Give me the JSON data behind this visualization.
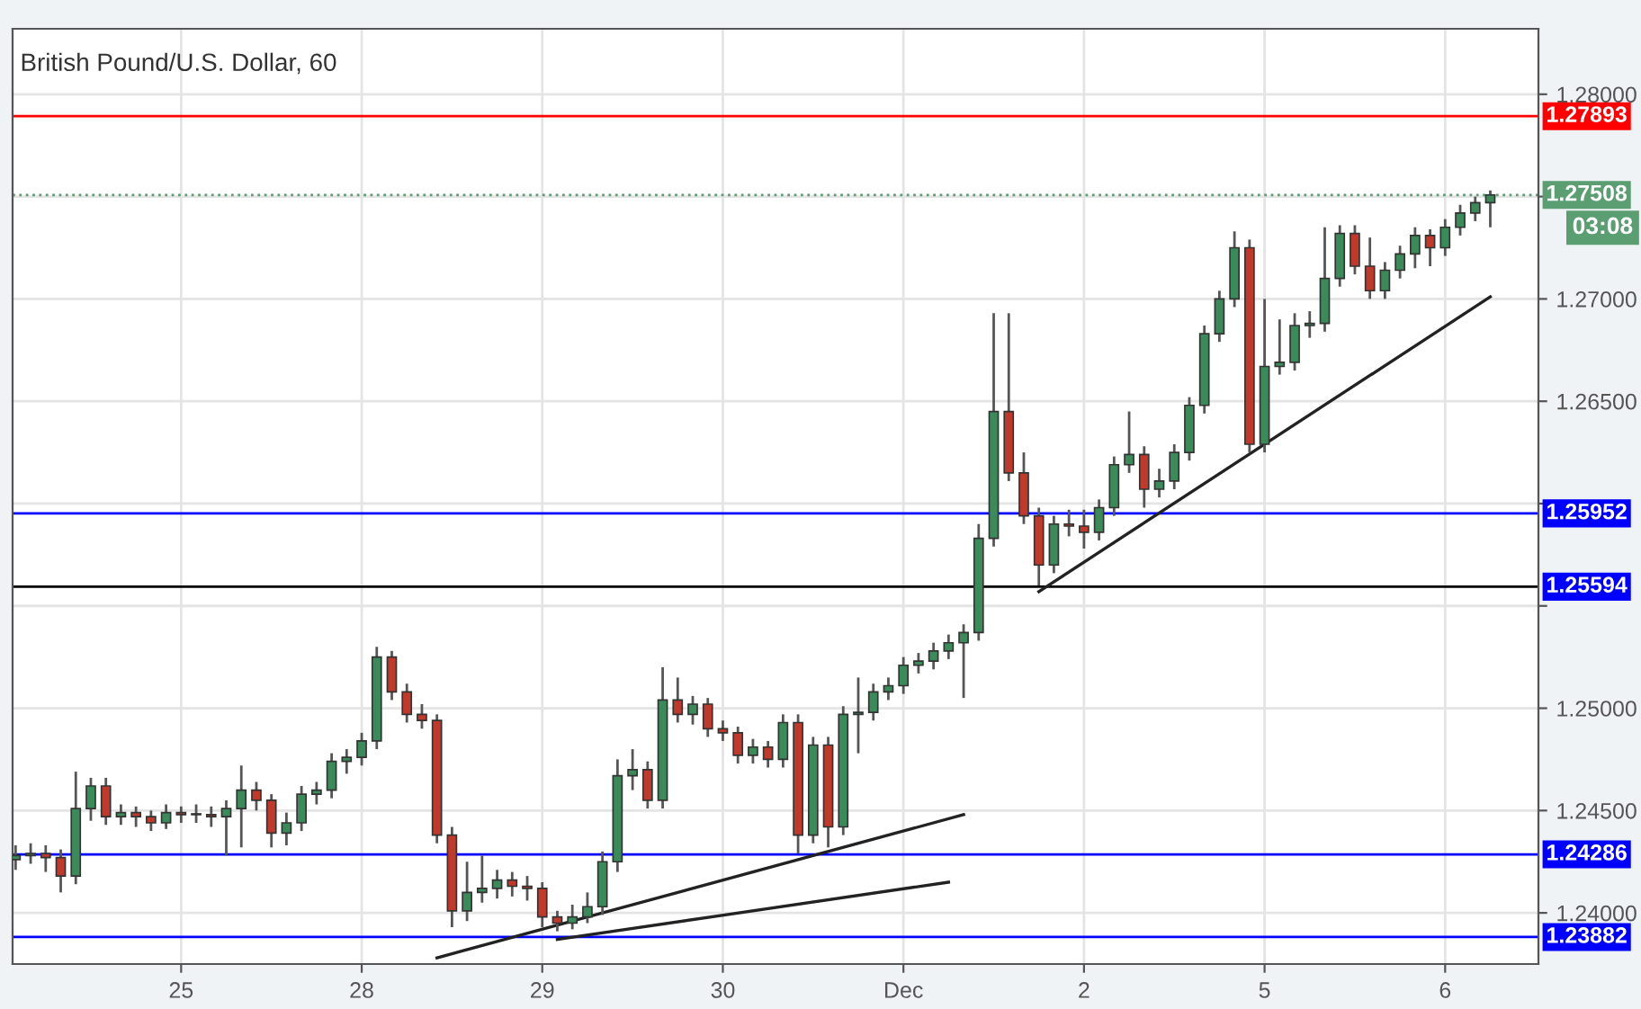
{
  "chart_data": {
    "type": "candlestick",
    "title": "British Pound/U.S. Dollar, 60",
    "categories": [
      null,
      null,
      null,
      null,
      null,
      null,
      null,
      null,
      null,
      null,
      null,
      "25",
      null,
      null,
      null,
      null,
      null,
      null,
      null,
      null,
      null,
      null,
      null,
      "28",
      null,
      null,
      null,
      null,
      null,
      null,
      null,
      null,
      null,
      null,
      null,
      "29",
      null,
      null,
      null,
      null,
      null,
      null,
      null,
      null,
      null,
      null,
      null,
      "30",
      null,
      null,
      null,
      null,
      null,
      null,
      null,
      null,
      null,
      null,
      null,
      "Dec",
      null,
      null,
      null,
      null,
      null,
      null,
      null,
      null,
      null,
      null,
      null,
      "2",
      null,
      null,
      null,
      null,
      null,
      null,
      null,
      null,
      null,
      null,
      null,
      "5",
      null,
      null,
      null,
      null,
      null,
      null,
      null,
      null,
      null,
      null,
      null,
      "6",
      null,
      null,
      null
    ],
    "ohlc": [
      [
        1.2426,
        1.2433,
        1.2421,
        1.2428
      ],
      [
        1.2428,
        1.2434,
        1.2424,
        1.2429
      ],
      [
        1.2429,
        1.2433,
        1.242,
        1.2427
      ],
      [
        1.2427,
        1.2431,
        1.241,
        1.2418
      ],
      [
        1.2418,
        1.2469,
        1.2414,
        1.2451
      ],
      [
        1.2451,
        1.2466,
        1.2445,
        1.2462
      ],
      [
        1.2462,
        1.2466,
        1.2443,
        1.2447
      ],
      [
        1.2447,
        1.2453,
        1.2443,
        1.2449
      ],
      [
        1.2449,
        1.2452,
        1.2442,
        1.2447
      ],
      [
        1.2447,
        1.245,
        1.244,
        1.2444
      ],
      [
        1.2444,
        1.2453,
        1.2441,
        1.2449
      ],
      [
        1.2449,
        1.2452,
        1.2444,
        1.2448
      ],
      [
        1.2448,
        1.2453,
        1.2444,
        1.2448
      ],
      [
        1.2448,
        1.2452,
        1.2442,
        1.2447
      ],
      [
        1.2447,
        1.2455,
        1.2428,
        1.2451
      ],
      [
        1.2451,
        1.2472,
        1.2432,
        1.246
      ],
      [
        1.246,
        1.2464,
        1.245,
        1.2455
      ],
      [
        1.2455,
        1.2458,
        1.2432,
        1.2439
      ],
      [
        1.2439,
        1.2449,
        1.2433,
        1.2444
      ],
      [
        1.2444,
        1.2462,
        1.244,
        1.2458
      ],
      [
        1.2458,
        1.2464,
        1.2453,
        1.246
      ],
      [
        1.246,
        1.2478,
        1.2456,
        1.2474
      ],
      [
        1.2474,
        1.248,
        1.2468,
        1.2476
      ],
      [
        1.2476,
        1.2488,
        1.2472,
        1.2484
      ],
      [
        1.2484,
        1.253,
        1.248,
        1.2525
      ],
      [
        1.2525,
        1.2528,
        1.2504,
        1.2508
      ],
      [
        1.2508,
        1.2512,
        1.2493,
        1.2497
      ],
      [
        1.2497,
        1.2502,
        1.249,
        1.2494
      ],
      [
        1.2494,
        1.2497,
        1.2434,
        1.2438
      ],
      [
        1.2438,
        1.2442,
        1.2393,
        1.2401
      ],
      [
        1.2401,
        1.2425,
        1.2396,
        1.241
      ],
      [
        1.241,
        1.2428,
        1.2405,
        1.2412
      ],
      [
        1.2412,
        1.2421,
        1.2407,
        1.2416
      ],
      [
        1.2416,
        1.242,
        1.2408,
        1.2413
      ],
      [
        1.2413,
        1.2418,
        1.2406,
        1.2412
      ],
      [
        1.2412,
        1.2415,
        1.2393,
        1.2398
      ],
      [
        1.2398,
        1.2401,
        1.2391,
        1.2395
      ],
      [
        1.2395,
        1.2404,
        1.2392,
        1.2398
      ],
      [
        1.2398,
        1.241,
        1.2395,
        1.2403
      ],
      [
        1.2403,
        1.243,
        1.2399,
        1.2425
      ],
      [
        1.2425,
        1.2475,
        1.242,
        1.2467
      ],
      [
        1.2467,
        1.248,
        1.246,
        1.247
      ],
      [
        1.247,
        1.2474,
        1.2451,
        1.2455
      ],
      [
        1.2455,
        1.252,
        1.2451,
        1.2504
      ],
      [
        1.2504,
        1.2515,
        1.2493,
        1.2497
      ],
      [
        1.2497,
        1.2506,
        1.2492,
        1.2502
      ],
      [
        1.2502,
        1.2505,
        1.2486,
        1.249
      ],
      [
        1.249,
        1.2494,
        1.2484,
        1.2488
      ],
      [
        1.2488,
        1.2491,
        1.2473,
        1.2477
      ],
      [
        1.2477,
        1.2485,
        1.2473,
        1.2481
      ],
      [
        1.2481,
        1.2484,
        1.2471,
        1.2475
      ],
      [
        1.2475,
        1.2497,
        1.2471,
        1.2493
      ],
      [
        1.2493,
        1.2497,
        1.2429,
        1.2438
      ],
      [
        1.2438,
        1.2486,
        1.2434,
        1.2482
      ],
      [
        1.2482,
        1.2486,
        1.2432,
        1.2442
      ],
      [
        1.2442,
        1.2501,
        1.2438,
        1.2497
      ],
      [
        1.2497,
        1.2515,
        1.2478,
        1.2498
      ],
      [
        1.2498,
        1.2512,
        1.2494,
        1.2508
      ],
      [
        1.2508,
        1.2515,
        1.2504,
        1.2511
      ],
      [
        1.2511,
        1.2525,
        1.2507,
        1.2521
      ],
      [
        1.2521,
        1.2527,
        1.2517,
        1.2523
      ],
      [
        1.2523,
        1.2532,
        1.2519,
        1.2528
      ],
      [
        1.2528,
        1.2536,
        1.2524,
        1.2532
      ],
      [
        1.2532,
        1.2541,
        1.2505,
        1.2537
      ],
      [
        1.2537,
        1.259,
        1.2533,
        1.2583
      ],
      [
        1.2583,
        1.2693,
        1.2579,
        1.2645
      ],
      [
        1.2645,
        1.2693,
        1.2611,
        1.2615
      ],
      [
        1.2615,
        1.2625,
        1.259,
        1.2594
      ],
      [
        1.2594,
        1.2598,
        1.256,
        1.257
      ],
      [
        1.257,
        1.2594,
        1.2566,
        1.259
      ],
      [
        1.259,
        1.2597,
        1.2584,
        1.2589
      ],
      [
        1.2589,
        1.2597,
        1.2578,
        1.2586
      ],
      [
        1.2586,
        1.2602,
        1.2582,
        1.2598
      ],
      [
        1.2598,
        1.2623,
        1.2594,
        1.2619
      ],
      [
        1.2619,
        1.2645,
        1.2615,
        1.2624
      ],
      [
        1.2624,
        1.2628,
        1.2598,
        1.2607
      ],
      [
        1.2607,
        1.2617,
        1.2603,
        1.2611
      ],
      [
        1.2611,
        1.2629,
        1.2607,
        1.2625
      ],
      [
        1.2625,
        1.2652,
        1.2621,
        1.2648
      ],
      [
        1.2648,
        1.2687,
        1.2644,
        1.2683
      ],
      [
        1.2683,
        1.2704,
        1.2679,
        1.27
      ],
      [
        1.27,
        1.2733,
        1.2696,
        1.2725
      ],
      [
        1.2725,
        1.2729,
        1.2625,
        1.2629
      ],
      [
        1.2629,
        1.27,
        1.2625,
        1.2667
      ],
      [
        1.2667,
        1.269,
        1.2663,
        1.2669
      ],
      [
        1.2669,
        1.2693,
        1.2665,
        1.2687
      ],
      [
        1.2687,
        1.2694,
        1.2681,
        1.2688
      ],
      [
        1.2688,
        1.2735,
        1.2684,
        1.271
      ],
      [
        1.271,
        1.2736,
        1.2706,
        1.2732
      ],
      [
        1.2732,
        1.2736,
        1.2712,
        1.2716
      ],
      [
        1.2716,
        1.273,
        1.27,
        1.2704
      ],
      [
        1.2704,
        1.2718,
        1.27,
        1.2714
      ],
      [
        1.2714,
        1.2726,
        1.271,
        1.2722
      ],
      [
        1.2722,
        1.2735,
        1.2715,
        1.2731
      ],
      [
        1.2731,
        1.2734,
        1.2716,
        1.2725
      ],
      [
        1.2725,
        1.2739,
        1.2721,
        1.2735
      ],
      [
        1.2735,
        1.2746,
        1.2731,
        1.2742
      ],
      [
        1.2742,
        1.275,
        1.2738,
        1.2747
      ],
      [
        1.2747,
        1.2753,
        1.2735,
        1.27508
      ]
    ],
    "colors": [
      "#3b8a5a",
      "#3b8a5a",
      "#c0392b",
      "#c0392b",
      "#3b8a5a",
      "#3b8a5a",
      "#c0392b",
      "#3b8a5a",
      "#c0392b",
      "#c0392b",
      "#3b8a5a",
      "#c0392b",
      "#3b8a5a",
      "#c0392b",
      "#3b8a5a",
      "#3b8a5a",
      "#c0392b",
      "#c0392b",
      "#3b8a5a",
      "#3b8a5a",
      "#3b8a5a",
      "#3b8a5a",
      "#3b8a5a",
      "#3b8a5a",
      "#3b8a5a",
      "#c0392b",
      "#c0392b",
      "#c0392b",
      "#c0392b",
      "#c0392b",
      "#3b8a5a",
      "#3b8a5a",
      "#3b8a5a",
      "#c0392b",
      "#c0392b",
      "#c0392b",
      "#c0392b",
      "#3b8a5a",
      "#3b8a5a",
      "#3b8a5a",
      "#3b8a5a",
      "#3b8a5a",
      "#c0392b",
      "#3b8a5a",
      "#c0392b",
      "#3b8a5a",
      "#c0392b",
      "#c0392b",
      "#c0392b",
      "#3b8a5a",
      "#c0392b",
      "#3b8a5a",
      "#c0392b",
      "#3b8a5a",
      "#c0392b",
      "#3b8a5a",
      "#3b8a5a",
      "#3b8a5a",
      "#3b8a5a",
      "#3b8a5a",
      "#3b8a5a",
      "#3b8a5a",
      "#3b8a5a",
      "#3b8a5a",
      "#3b8a5a",
      "#3b8a5a",
      "#c0392b",
      "#c0392b",
      "#c0392b",
      "#3b8a5a",
      "#c0392b",
      "#c0392b",
      "#3b8a5a",
      "#3b8a5a",
      "#3b8a5a",
      "#c0392b",
      "#3b8a5a",
      "#3b8a5a",
      "#3b8a5a",
      "#3b8a5a",
      "#3b8a5a",
      "#3b8a5a",
      "#c0392b",
      "#3b8a5a",
      "#3b8a5a",
      "#3b8a5a",
      "#3b8a5a",
      "#3b8a5a",
      "#3b8a5a",
      "#c0392b",
      "#c0392b",
      "#3b8a5a",
      "#3b8a5a",
      "#3b8a5a",
      "#c0392b",
      "#3b8a5a",
      "#3b8a5a",
      "#3b8a5a",
      "#3b8a5a"
    ],
    "series": [
      {
        "type": "line",
        "color": "#222222",
        "values": [
          null,
          null,
          null,
          null,
          null,
          null,
          null,
          null,
          null,
          null,
          null,
          null,
          null,
          null,
          null,
          null,
          null,
          null,
          null,
          null,
          null,
          null,
          null,
          null,
          null,
          null,
          null,
          null,
          null,
          null,
          null,
          null,
          null,
          null,
          null,
          null,
          null,
          null,
          null,
          null,
          null,
          null,
          null,
          null,
          null,
          null,
          null,
          null,
          null,
          null,
          null,
          null,
          null,
          null,
          null,
          null,
          null,
          null,
          null,
          null,
          null,
          null,
          null,
          null,
          null,
          null,
          null,
          null,
          1.2557,
          null,
          null,
          null,
          null,
          null,
          null,
          null,
          null,
          null,
          null,
          null,
          null,
          null,
          null,
          null,
          null,
          null,
          null,
          null,
          null,
          null,
          null,
          null,
          null,
          null,
          null,
          null,
          null,
          null,
          1.2701
        ]
      },
      {
        "type": "line",
        "color": "#222222",
        "values": [
          null,
          null,
          null,
          null,
          null,
          null,
          null,
          null,
          null,
          null,
          null,
          null,
          null,
          null,
          null,
          null,
          null,
          null,
          null,
          null,
          null,
          null,
          null,
          null,
          null,
          null,
          null,
          null,
          1.2378,
          null,
          null,
          null,
          null,
          null,
          null,
          null,
          null,
          null,
          null,
          null,
          null,
          null,
          null,
          null,
          null,
          null,
          null,
          null,
          null,
          null,
          null,
          null,
          null,
          null,
          null,
          null,
          null,
          null,
          null,
          null,
          null,
          null,
          null,
          1.2448,
          null,
          null,
          null,
          null,
          null,
          null,
          null,
          null,
          null,
          null,
          null,
          null,
          null,
          null,
          null,
          null,
          null,
          null,
          null,
          null,
          null,
          null,
          null,
          null,
          null,
          null,
          null,
          null,
          null,
          null,
          null,
          null,
          null,
          null,
          null
        ]
      },
      {
        "type": "line",
        "color": "#222222",
        "values": [
          null,
          null,
          null,
          null,
          null,
          null,
          null,
          null,
          null,
          null,
          null,
          null,
          null,
          null,
          null,
          null,
          null,
          null,
          null,
          null,
          null,
          null,
          null,
          null,
          null,
          null,
          null,
          null,
          null,
          null,
          null,
          null,
          null,
          null,
          null,
          null,
          1.2387,
          null,
          null,
          null,
          null,
          null,
          null,
          null,
          null,
          null,
          null,
          null,
          null,
          null,
          null,
          null,
          null,
          null,
          null,
          null,
          null,
          null,
          null,
          null,
          null,
          null,
          1.2415,
          null,
          null,
          null,
          null,
          null,
          null,
          null,
          null,
          null,
          null,
          null,
          null,
          null,
          null,
          null,
          null,
          null,
          null,
          null,
          null,
          null,
          null,
          null,
          null,
          null,
          null,
          null,
          null,
          null,
          null,
          null,
          null,
          null,
          null,
          null,
          null
        ]
      }
    ],
    "ylim": [
      1.2375,
      1.2832
    ],
    "yticks": [
      {
        "value": 1.24,
        "label": "1.24000"
      },
      {
        "value": 1.245,
        "label": "1.24500"
      },
      {
        "value": 1.25,
        "label": "1.25000"
      },
      {
        "value": 1.255,
        "label": null
      },
      {
        "value": 1.26,
        "label": null
      },
      {
        "value": 1.265,
        "label": "1.26500"
      },
      {
        "value": 1.27,
        "label": "1.27000"
      },
      {
        "value": 1.275,
        "label": null
      },
      {
        "value": 1.28,
        "label": "1.28000"
      }
    ],
    "ref_lines": [
      {
        "axis": "y",
        "value": 1.27893,
        "label": "1.27893",
        "color": "#ff0000",
        "line_style": "solid"
      },
      {
        "axis": "y",
        "value": 1.27508,
        "label": "1.27508",
        "color": "#5a9e72",
        "line_style": "dotted"
      },
      {
        "axis": "y",
        "value": 1.25952,
        "label": "1.25952",
        "color": "#0000ff",
        "line_style": "solid"
      },
      {
        "axis": "y",
        "value": 1.25594,
        "label": "1.25594",
        "color": "#000000",
        "line_style": "solid"
      },
      {
        "axis": "y",
        "value": 1.24286,
        "label": "1.24286",
        "color": "#0000ff",
        "line_style": "solid"
      },
      {
        "axis": "y",
        "value": 1.23882,
        "label": "1.23882",
        "color": "#0000ff",
        "line_style": "solid"
      }
    ],
    "annotations": [
      "03:08"
    ],
    "grid": true
  }
}
